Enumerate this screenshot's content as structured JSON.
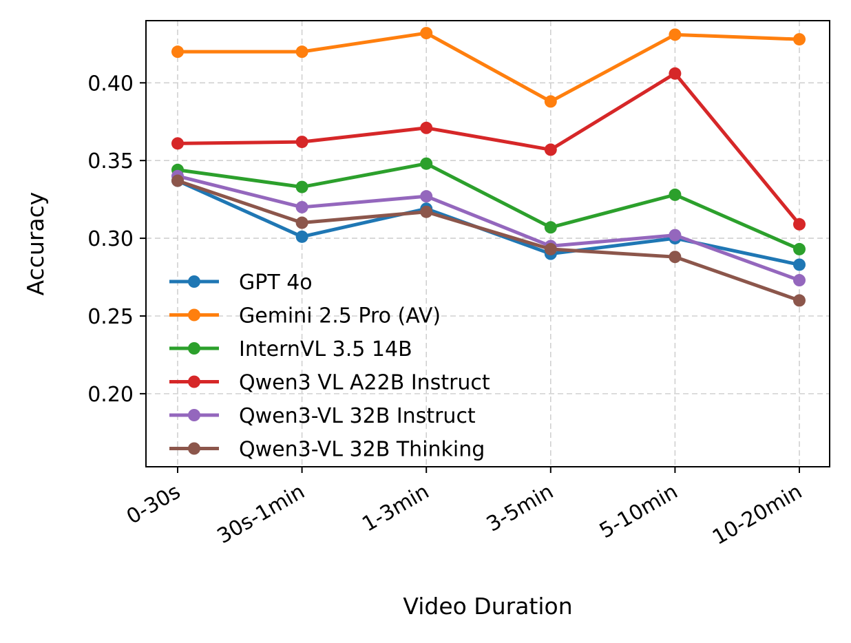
{
  "chart_data": {
    "type": "line",
    "title": "",
    "xlabel": "Video Duration",
    "ylabel": "Accuracy",
    "categories": [
      "0-30s",
      "30s-1min",
      "1-3min",
      "3-5min",
      "5-10min",
      "10-20min"
    ],
    "ylim": [
      0.153,
      0.44
    ],
    "yticks": [
      0.2,
      0.25,
      0.3,
      0.35,
      0.4
    ],
    "ytick_labels": [
      "0.20",
      "0.25",
      "0.30",
      "0.35",
      "0.40"
    ],
    "grid": true,
    "legend_placement": "lower-left",
    "series": [
      {
        "name": "GPT 4o",
        "color": "#1f77b4",
        "values": [
          0.337,
          0.301,
          0.319,
          0.29,
          0.3,
          0.283
        ]
      },
      {
        "name": "Gemini 2.5 Pro (AV)",
        "color": "#ff7f0e",
        "values": [
          0.42,
          0.42,
          0.432,
          0.388,
          0.431,
          0.428
        ]
      },
      {
        "name": "InternVL 3.5 14B",
        "color": "#2ca02c",
        "values": [
          0.344,
          0.333,
          0.348,
          0.307,
          0.328,
          0.293
        ]
      },
      {
        "name": "Qwen3 VL A22B Instruct",
        "color": "#d62728",
        "values": [
          0.361,
          0.362,
          0.371,
          0.357,
          0.406,
          0.309
        ]
      },
      {
        "name": "Qwen3-VL 32B Instruct",
        "color": "#9467bd",
        "values": [
          0.34,
          0.32,
          0.327,
          0.295,
          0.302,
          0.273
        ]
      },
      {
        "name": "Qwen3-VL 32B Thinking",
        "color": "#8c564b",
        "values": [
          0.337,
          0.31,
          0.317,
          0.293,
          0.288,
          0.26
        ]
      }
    ]
  }
}
